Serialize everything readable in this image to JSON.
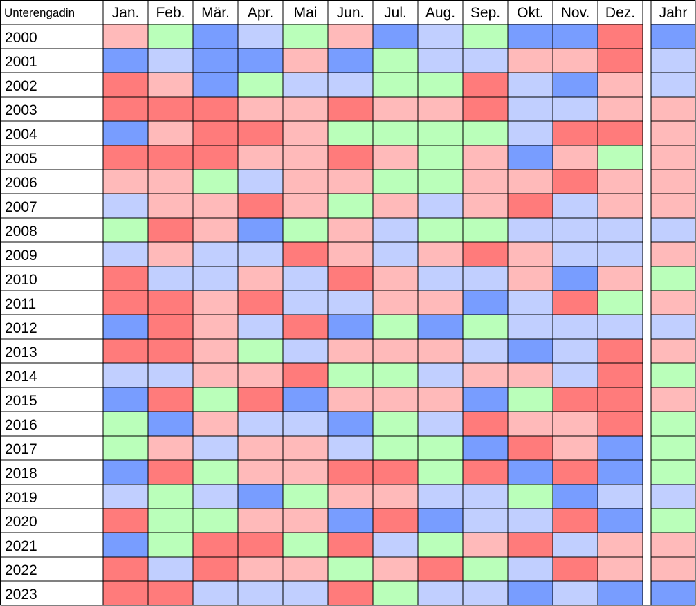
{
  "chart_data": {
    "type": "heatmap",
    "region": "Unterengadin",
    "columns": [
      "Jan.",
      "Feb.",
      "Mär.",
      "Apr.",
      "Mai",
      "Jun.",
      "Jul.",
      "Aug.",
      "Sep.",
      "Okt.",
      "Nov.",
      "Dez.",
      "Jahr"
    ],
    "rows": [
      "2000",
      "2001",
      "2002",
      "2003",
      "2004",
      "2005",
      "2006",
      "2007",
      "2008",
      "2009",
      "2010",
      "2011",
      "2012",
      "2013",
      "2014",
      "2015",
      "2016",
      "2017",
      "2018",
      "2019",
      "2020",
      "2021",
      "2022",
      "2023"
    ],
    "color_legend": {
      "R": "#ff7b7b",
      "r": "#ffbaba",
      "g": "#baffba",
      "b": "#c1cfff",
      "B": "#789dff"
    },
    "cells": [
      "rgBbgrBbgBBRB",
      "BbBBrBgbbrrRb",
      "RrBgbbggRbBrb",
      "RRRrrRrrRbbrr",
      "BrRRrggggbRRr",
      "RRRrrRrgrBrgr",
      "rrgbrrggrrRrr",
      "brrRrgrbrRbrr",
      "gRrBgrbggbbbb",
      "brbbRrbrRrbbr",
      "RbbrbRrbbrBrg",
      "RRrRbbrrBbRgr",
      "BRrbRBgBgbbbb",
      "RRrgbrrrbBbRr",
      "bbrrRggbrrbRg",
      "BRgRBrrrBgRRr",
      "gBrbbBgbRrrRg",
      "grbrrbggBRrBg",
      "BRgrrRRgRBRBg",
      "bgbBgrrbbgBbb",
      "RggrrBRBbbRBg",
      "BgRRgRbgrRbrr",
      "RbRrrgrRgbRrr",
      "RRbbbRgbbBbBB"
    ]
  }
}
